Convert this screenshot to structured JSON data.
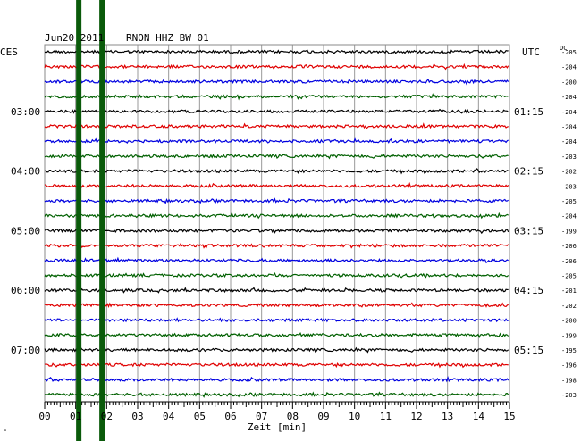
{
  "header": {
    "date": "Jun20 2011",
    "station": "RNON HHZ BW 01",
    "left_zone": "CES",
    "right_zone": "UTC",
    "dc_label": "DC"
  },
  "colors": {
    "trace_cycle": [
      "#000000",
      "#e00000",
      "#0000e0",
      "#006000"
    ],
    "grid": "#999999",
    "event_markers": "#0a5a0a"
  },
  "chart_data": {
    "type": "line",
    "title": "RNON HHZ BW 01",
    "xlabel": "Zeit [min]",
    "xlim": [
      0,
      15
    ],
    "x_ticks": [
      "00",
      "01",
      "02",
      "03",
      "04",
      "05",
      "06",
      "07",
      "08",
      "09",
      "10",
      "11",
      "12",
      "13",
      "14",
      "15"
    ],
    "left_time_labels": [
      {
        "row": 4,
        "label": "03:00"
      },
      {
        "row": 8,
        "label": "04:00"
      },
      {
        "row": 12,
        "label": "05:00"
      },
      {
        "row": 16,
        "label": "06:00"
      },
      {
        "row": 20,
        "label": "07:00"
      }
    ],
    "right_time_labels": [
      {
        "row": 4,
        "label": "01:15"
      },
      {
        "row": 8,
        "label": "02:15"
      },
      {
        "row": 12,
        "label": "03:15"
      },
      {
        "row": 16,
        "label": "04:15"
      },
      {
        "row": 20,
        "label": "05:15"
      }
    ],
    "dc_offsets": [
      -205,
      -204,
      -200,
      -204,
      -204,
      -204,
      -204,
      -203,
      -202,
      -203,
      -205,
      -204,
      -199,
      -206,
      -206,
      -205,
      -201,
      -202,
      -200,
      -199,
      -195,
      -196,
      -198,
      -203
    ],
    "event_markers_min": [
      1.1,
      1.85
    ],
    "grid": true
  }
}
